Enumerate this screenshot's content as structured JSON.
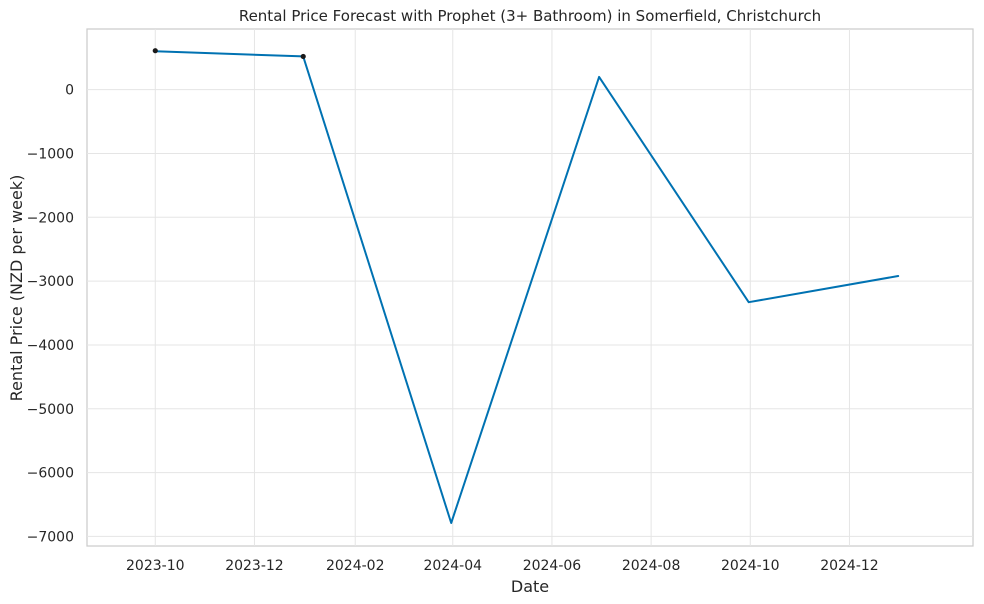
{
  "chart_data": {
    "type": "line",
    "title": "Rental Price Forecast with Prophet (3+ Bathroom) in Somerfield, Christchurch",
    "xlabel": "Date",
    "ylabel": "Rental Price (NZD per week)",
    "x_axis_type": "date",
    "xlim": [
      "2023-08-20",
      "2025-02-15"
    ],
    "ylim": [
      -7150,
      950
    ],
    "x_ticks": [
      "2023-10",
      "2023-12",
      "2024-02",
      "2024-04",
      "2024-06",
      "2024-08",
      "2024-10",
      "2024-12"
    ],
    "y_ticks": [
      0,
      -1000,
      -2000,
      -3000,
      -4000,
      -5000,
      -6000,
      -7000
    ],
    "grid": true,
    "legend": "none",
    "series": [
      {
        "x": [
          "2023-10-01",
          "2023-12-31",
          "2024-03-31",
          "2024-06-30",
          "2024-09-30",
          "2024-12-31"
        ],
        "y": [
          600,
          520,
          -6790,
          200,
          -3330,
          -2920
        ],
        "color": "#0072b2",
        "kind": "forecast-line"
      },
      {
        "x": [
          "2023-10-01",
          "2023-12-31"
        ],
        "y": [
          610,
          520
        ],
        "color": "#1a1a1a",
        "kind": "observed-points"
      }
    ]
  }
}
